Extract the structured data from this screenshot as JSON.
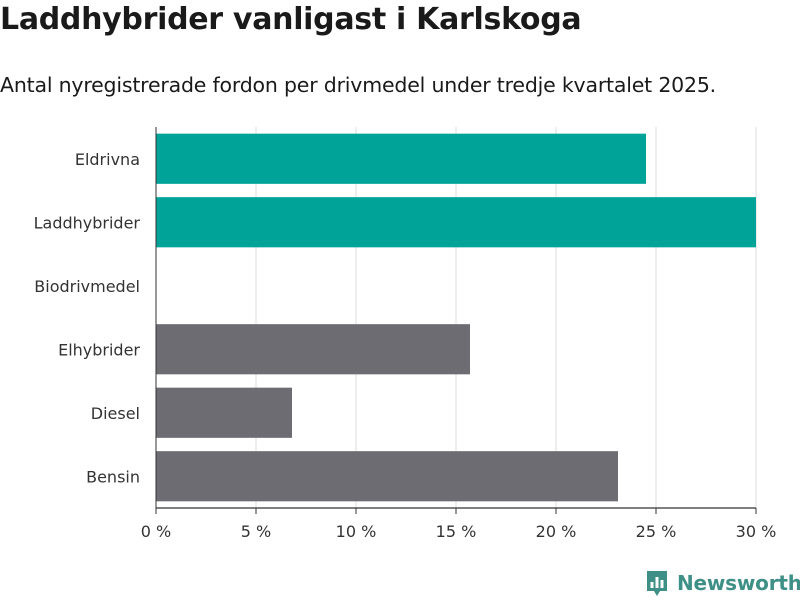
{
  "title": "Laddhybrider vanligast i Karlskoga",
  "subtitle": "Antal nyregistrerade fordon per drivmedel under tredje kvartalet 2025.",
  "brand": {
    "name": "Newsworthy",
    "icon": "bar-chart-logo-icon",
    "color": "#3e8f86"
  },
  "chart_data": {
    "type": "bar",
    "orientation": "horizontal",
    "categories": [
      "Eldrivna",
      "Laddhybrider",
      "Biodrivmedel",
      "Elhybrider",
      "Diesel",
      "Bensin"
    ],
    "values": [
      24.5,
      30.0,
      0,
      15.7,
      6.8,
      23.1
    ],
    "colors": [
      "#00a398",
      "#00a398",
      "#00a398",
      "#6d6c73",
      "#6d6c73",
      "#6d6c73"
    ],
    "xlim": [
      0,
      30
    ],
    "ticks": [
      0,
      5,
      10,
      15,
      20,
      25,
      30
    ],
    "tick_labels": [
      "0 %",
      "5 %",
      "10 %",
      "15 %",
      "20 %",
      "25 %",
      "30 %"
    ],
    "grid": true
  }
}
